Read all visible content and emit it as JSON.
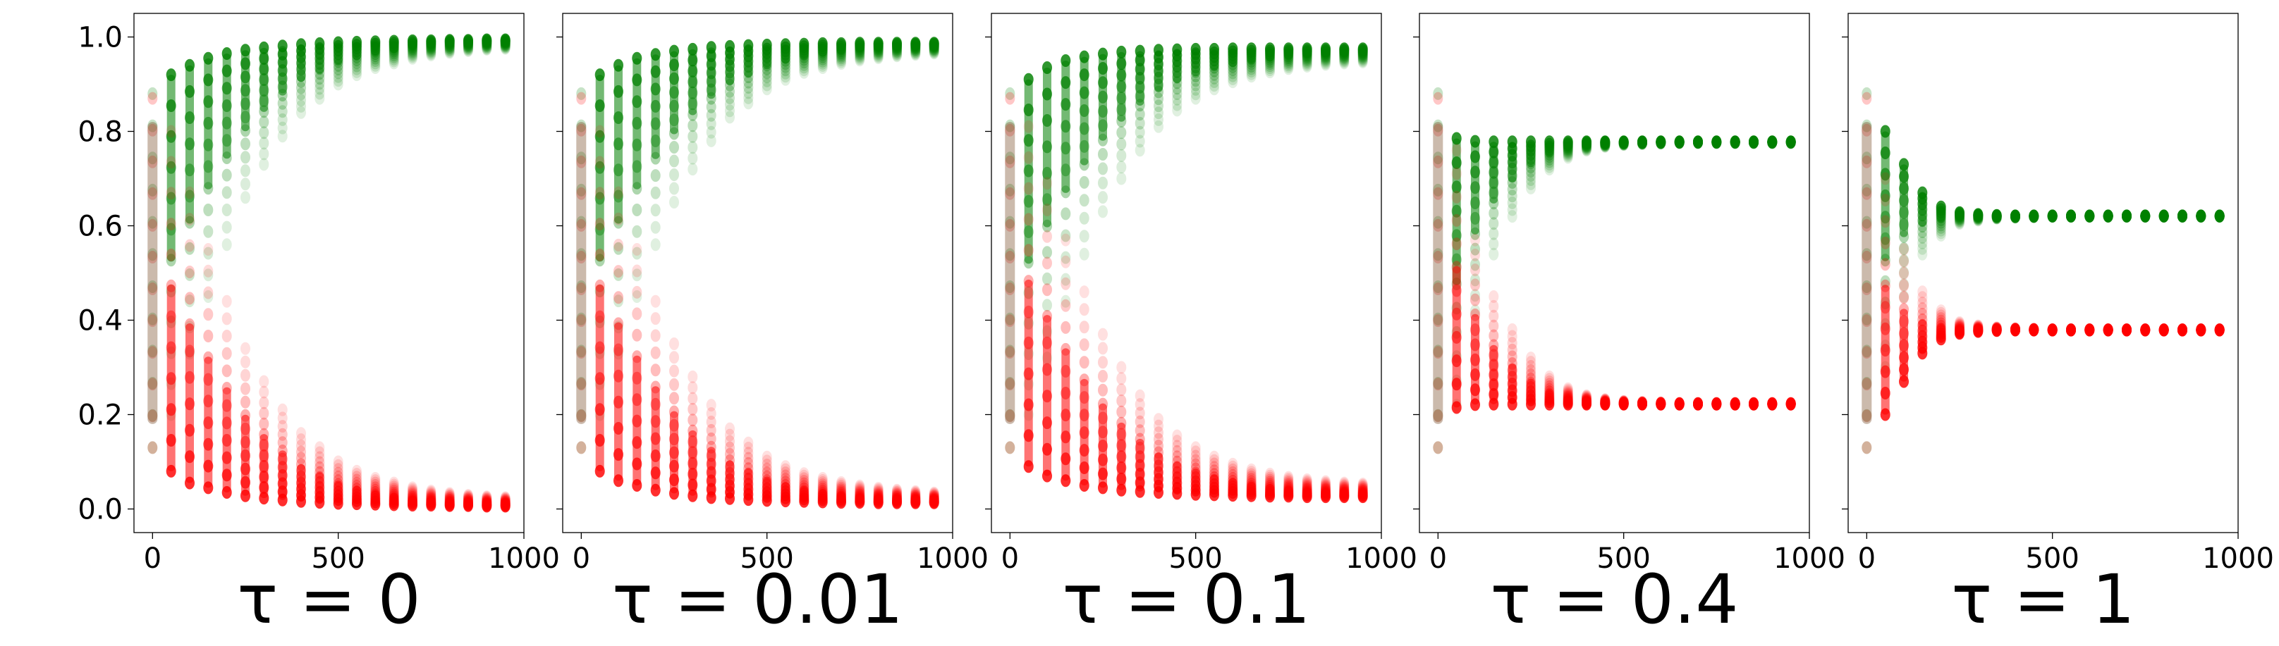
{
  "chart_data": {
    "type": "scatter",
    "y_tick_labels": [
      "0.0",
      "0.2",
      "0.4",
      "0.6",
      "0.8",
      "1.0"
    ],
    "x_tick_labels": [
      "0",
      "500",
      "1000"
    ],
    "x_ticks": [
      0,
      500,
      1000
    ],
    "y_ticks": [
      0.0,
      0.2,
      0.4,
      0.6,
      0.8,
      1.0
    ],
    "xlim": [
      -50,
      1000
    ],
    "ylim": [
      -0.05,
      1.05
    ],
    "x_steps": [
      0,
      50,
      100,
      150,
      200,
      250,
      300,
      350,
      400,
      450,
      500,
      550,
      600,
      650,
      700,
      750,
      800,
      850,
      900,
      950
    ],
    "series_colors": {
      "upper": "#008000",
      "lower": "#ff0000"
    },
    "panels": [
      {
        "title": "τ = 0",
        "upper_min": [
          0.13,
          0.2,
          0.33,
          0.45,
          0.56,
          0.66,
          0.73,
          0.79,
          0.84,
          0.87,
          0.9,
          0.92,
          0.935,
          0.945,
          0.955,
          0.962,
          0.967,
          0.971,
          0.974,
          0.976
        ],
        "upper_max": [
          0.88,
          0.92,
          0.94,
          0.955,
          0.965,
          0.972,
          0.977,
          0.981,
          0.984,
          0.986,
          0.988,
          0.989,
          0.99,
          0.991,
          0.992,
          0.992,
          0.993,
          0.993,
          0.994,
          0.994
        ],
        "lower_min": [
          0.13,
          0.08,
          0.055,
          0.045,
          0.035,
          0.028,
          0.023,
          0.019,
          0.016,
          0.014,
          0.012,
          0.011,
          0.01,
          0.009,
          0.008,
          0.008,
          0.007,
          0.007,
          0.006,
          0.006
        ],
        "lower_max": [
          0.87,
          0.8,
          0.67,
          0.55,
          0.44,
          0.34,
          0.27,
          0.21,
          0.16,
          0.13,
          0.1,
          0.08,
          0.065,
          0.055,
          0.045,
          0.038,
          0.033,
          0.029,
          0.026,
          0.024
        ]
      },
      {
        "title": "τ = 0.01",
        "upper_min": [
          0.13,
          0.2,
          0.33,
          0.45,
          0.56,
          0.65,
          0.72,
          0.78,
          0.83,
          0.86,
          0.89,
          0.91,
          0.925,
          0.935,
          0.944,
          0.951,
          0.956,
          0.96,
          0.963,
          0.966
        ],
        "upper_max": [
          0.88,
          0.92,
          0.94,
          0.955,
          0.963,
          0.97,
          0.974,
          0.978,
          0.98,
          0.982,
          0.983,
          0.984,
          0.985,
          0.986,
          0.986,
          0.987,
          0.987,
          0.987,
          0.987,
          0.987
        ],
        "lower_min": [
          0.13,
          0.08,
          0.06,
          0.05,
          0.04,
          0.033,
          0.028,
          0.024,
          0.022,
          0.02,
          0.018,
          0.017,
          0.016,
          0.015,
          0.014,
          0.014,
          0.013,
          0.013,
          0.013,
          0.013
        ],
        "lower_max": [
          0.87,
          0.8,
          0.67,
          0.55,
          0.44,
          0.35,
          0.28,
          0.22,
          0.17,
          0.14,
          0.11,
          0.09,
          0.075,
          0.065,
          0.056,
          0.049,
          0.044,
          0.04,
          0.037,
          0.034
        ]
      },
      {
        "title": "τ = 0.1",
        "upper_min": [
          0.13,
          0.2,
          0.32,
          0.44,
          0.54,
          0.63,
          0.7,
          0.76,
          0.81,
          0.845,
          0.87,
          0.89,
          0.905,
          0.917,
          0.926,
          0.933,
          0.938,
          0.942,
          0.945,
          0.947
        ],
        "upper_max": [
          0.88,
          0.91,
          0.935,
          0.95,
          0.958,
          0.964,
          0.968,
          0.97,
          0.972,
          0.973,
          0.974,
          0.974,
          0.975,
          0.975,
          0.975,
          0.975,
          0.975,
          0.975,
          0.975,
          0.975
        ],
        "lower_min": [
          0.13,
          0.09,
          0.07,
          0.06,
          0.05,
          0.045,
          0.04,
          0.037,
          0.035,
          0.033,
          0.031,
          0.03,
          0.029,
          0.028,
          0.027,
          0.027,
          0.026,
          0.026,
          0.026,
          0.026
        ],
        "lower_max": [
          0.87,
          0.81,
          0.69,
          0.57,
          0.46,
          0.37,
          0.3,
          0.24,
          0.19,
          0.155,
          0.13,
          0.11,
          0.095,
          0.083,
          0.074,
          0.067,
          0.062,
          0.058,
          0.055,
          0.053
        ]
      },
      {
        "title": "τ = 0.4",
        "upper_min": [
          0.13,
          0.22,
          0.42,
          0.54,
          0.62,
          0.68,
          0.72,
          0.745,
          0.76,
          0.768,
          0.772,
          0.774,
          0.775,
          0.776,
          0.776,
          0.776,
          0.776,
          0.776,
          0.776,
          0.776
        ],
        "upper_max": [
          0.88,
          0.785,
          0.779,
          0.778,
          0.778,
          0.778,
          0.778,
          0.778,
          0.778,
          0.778,
          0.778,
          0.778,
          0.778,
          0.778,
          0.778,
          0.778,
          0.778,
          0.778,
          0.778,
          0.778
        ],
        "lower_min": [
          0.13,
          0.215,
          0.221,
          0.222,
          0.222,
          0.222,
          0.222,
          0.222,
          0.222,
          0.222,
          0.222,
          0.222,
          0.222,
          0.222,
          0.222,
          0.222,
          0.222,
          0.222,
          0.222,
          0.222
        ],
        "lower_max": [
          0.87,
          0.76,
          0.57,
          0.45,
          0.38,
          0.32,
          0.28,
          0.255,
          0.24,
          0.232,
          0.228,
          0.226,
          0.225,
          0.224,
          0.224,
          0.224,
          0.224,
          0.224,
          0.224,
          0.224
        ]
      },
      {
        "title": "τ = 1",
        "upper_min": [
          0.13,
          0.3,
          0.45,
          0.54,
          0.58,
          0.605,
          0.612,
          0.616,
          0.618,
          0.619,
          0.62,
          0.62,
          0.62,
          0.62,
          0.62,
          0.62,
          0.62,
          0.62,
          0.62,
          0.62
        ],
        "upper_max": [
          0.88,
          0.8,
          0.73,
          0.67,
          0.64,
          0.628,
          0.624,
          0.622,
          0.621,
          0.621,
          0.621,
          0.621,
          0.621,
          0.621,
          0.621,
          0.621,
          0.621,
          0.621,
          0.621,
          0.621
        ],
        "lower_min": [
          0.13,
          0.2,
          0.27,
          0.33,
          0.36,
          0.372,
          0.376,
          0.378,
          0.379,
          0.379,
          0.379,
          0.379,
          0.379,
          0.379,
          0.379,
          0.379,
          0.379,
          0.379,
          0.379,
          0.379
        ],
        "lower_max": [
          0.87,
          0.7,
          0.55,
          0.46,
          0.42,
          0.395,
          0.388,
          0.384,
          0.382,
          0.381,
          0.38,
          0.38,
          0.38,
          0.38,
          0.38,
          0.38,
          0.38,
          0.38,
          0.38,
          0.38
        ]
      }
    ]
  }
}
